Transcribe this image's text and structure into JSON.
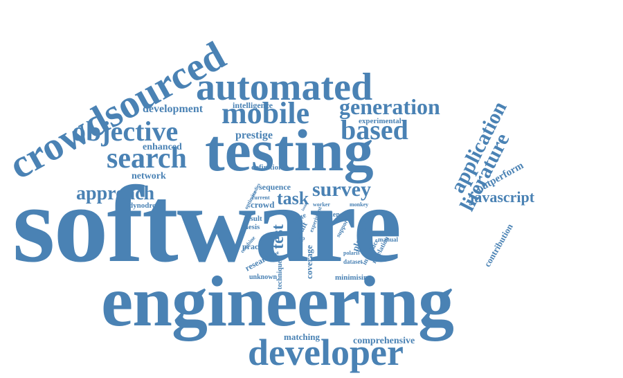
{
  "cloud": {
    "color": "#4a82b4",
    "words": [
      "software",
      "engineering",
      "testing",
      "crowdsourced",
      "automated",
      "developer",
      "mobile",
      "objective",
      "based",
      "generation",
      "search",
      "survey",
      "application",
      "literature",
      "approach",
      "task",
      "test",
      "javascript",
      "development",
      "prestige",
      "enhanced",
      "network",
      "intelligence",
      "experimental",
      "outperform",
      "definition",
      "sequence",
      "dynodroid",
      "crowd",
      "result",
      "thesis",
      "practice",
      "research",
      "unknown",
      "technique",
      "coverage",
      "minimising",
      "platform",
      "contribution",
      "comprehensive",
      "matching",
      "fault",
      "app",
      "state",
      "worker",
      "monkey",
      "length",
      "support",
      "introduce",
      "revelation",
      "manual",
      "polaris",
      "dataset",
      "experiment",
      "current",
      "optimise",
      "combine",
      "unique",
      "studies",
      "issue"
    ]
  }
}
